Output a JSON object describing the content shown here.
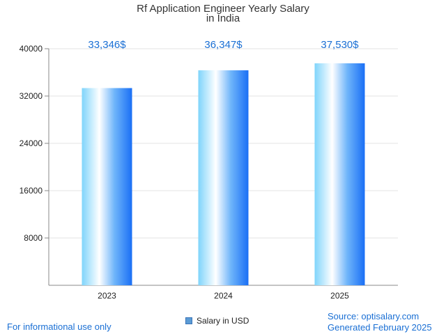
{
  "chart_data": {
    "type": "bar",
    "title_line1": "Rf Application Engineer Yearly Salary",
    "title_line2": "in India",
    "categories": [
      "2023",
      "2024",
      "2025"
    ],
    "series": [
      {
        "name": "Salary in USD",
        "values": [
          33346,
          36347,
          37530
        ],
        "labels": [
          "33,346$",
          "36,347$",
          "37,530$"
        ]
      }
    ],
    "ylim": [
      0,
      40000
    ],
    "yticks": [
      8000,
      16000,
      24000,
      32000,
      40000
    ],
    "grid": true,
    "legend_position": "bottom-center",
    "colors": {
      "bar_dark": "#1a6ff5",
      "bar_light": "#ffffff",
      "bar_cyan": "#7fd4fb",
      "value_label": "#1a6fd4"
    }
  },
  "footer": {
    "note": "For informational use only",
    "source": "Source: optisalary.com",
    "generated": "Generated February 2025"
  }
}
